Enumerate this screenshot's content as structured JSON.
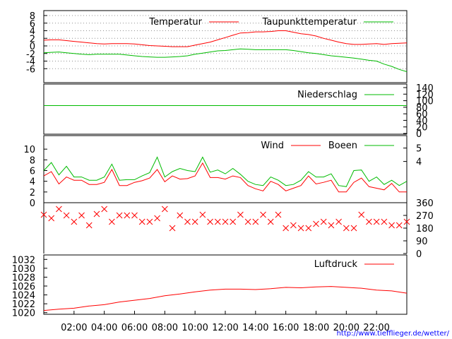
{
  "source_label": "http://www.tiefflieger.de/wetter/",
  "colors": {
    "red": "#ff0000",
    "green": "#00bb00",
    "grid": "#909090",
    "axis": "#000000",
    "link": "#0000ff"
  },
  "chart_data": [
    {
      "id": "temperature",
      "type": "line",
      "x_ticks": [
        "02:00",
        "04:00",
        "06:00",
        "08:00",
        "10:00",
        "12:00",
        "14:00",
        "16:00",
        "18:00",
        "20:00",
        "22:00"
      ],
      "x_range": [
        0,
        24
      ],
      "ylim": [
        -8,
        8
      ],
      "y_ticks": [
        "8",
        "6",
        "4",
        "2",
        "0",
        "-2",
        "-4",
        "-6"
      ],
      "grid": true,
      "legend": "top-right",
      "series": [
        {
          "name": "Temperatur",
          "color": "#ff0000",
          "x": [
            0,
            0.5,
            1,
            1.5,
            2,
            2.5,
            3,
            3.5,
            4,
            4.5,
            5,
            5.5,
            6,
            6.5,
            7,
            7.5,
            8,
            8.5,
            9,
            9.5,
            10,
            10.5,
            11,
            11.5,
            12,
            12.5,
            13,
            13.5,
            14,
            14.5,
            15,
            15.5,
            16,
            16.5,
            17,
            17.5,
            18,
            18.5,
            19,
            19.5,
            20,
            20.5,
            21,
            21.5,
            22,
            22.5,
            23,
            23.5,
            24
          ],
          "values": [
            1.5,
            1.6,
            1.6,
            1.4,
            1.2,
            1.0,
            0.8,
            0.6,
            0.5,
            0.6,
            0.6,
            0.6,
            0.5,
            0.3,
            0.1,
            0.0,
            -0.1,
            -0.2,
            -0.2,
            -0.2,
            0.2,
            0.6,
            1.0,
            1.6,
            2.2,
            2.8,
            3.4,
            3.5,
            3.7,
            3.7,
            3.8,
            4.0,
            4.0,
            3.6,
            3.2,
            3.0,
            2.6,
            2.0,
            1.5,
            1.0,
            0.6,
            0.4,
            0.4,
            0.5,
            0.6,
            0.4,
            0.6,
            0.7,
            0.8
          ]
        },
        {
          "name": "Taupunkttemperatur",
          "color": "#00bb00",
          "x": [
            0,
            0.5,
            1,
            1.5,
            2,
            2.5,
            3,
            3.5,
            4,
            4.5,
            5,
            5.5,
            6,
            6.5,
            7,
            7.5,
            8,
            8.5,
            9,
            9.5,
            10,
            10.5,
            11,
            11.5,
            12,
            12.5,
            13,
            13.5,
            14,
            14.5,
            15,
            15.5,
            16,
            16.5,
            17,
            17.5,
            18,
            18.5,
            19,
            19.5,
            20,
            20.5,
            21,
            21.5,
            22,
            22.5,
            23,
            23.5,
            24
          ],
          "values": [
            -1.8,
            -1.7,
            -1.6,
            -1.8,
            -2.0,
            -2.2,
            -2.3,
            -2.2,
            -2.2,
            -2.2,
            -2.2,
            -2.4,
            -2.6,
            -2.8,
            -2.9,
            -3.0,
            -3.0,
            -2.9,
            -2.8,
            -2.6,
            -2.2,
            -1.9,
            -1.6,
            -1.3,
            -1.2,
            -1.0,
            -0.8,
            -0.9,
            -1.0,
            -1.0,
            -1.0,
            -1.0,
            -1.0,
            -1.2,
            -1.5,
            -1.8,
            -2.0,
            -2.3,
            -2.6,
            -2.8,
            -3.0,
            -3.2,
            -3.5,
            -3.8,
            -4.0,
            -4.8,
            -5.4,
            -6.2,
            -6.8
          ]
        }
      ]
    },
    {
      "id": "precipitation",
      "type": "line",
      "x_range": [
        0,
        24
      ],
      "ylim": [
        0,
        140
      ],
      "y_ticks": [
        "140",
        "120",
        "100",
        "80",
        "60",
        "40",
        "20",
        "0"
      ],
      "legend": "top-right",
      "series": [
        {
          "name": "Niederschlag",
          "color": "#00bb00",
          "x": [
            0,
            24
          ],
          "values": [
            85,
            85
          ]
        }
      ]
    },
    {
      "id": "wind",
      "type": "line",
      "x_range": [
        0,
        24
      ],
      "ylim": [
        0,
        12
      ],
      "y_ticks": [
        "10",
        "8",
        "6",
        "4",
        "2",
        "0"
      ],
      "y2_ticks": [
        "5",
        "4"
      ],
      "legend": "top-right",
      "series": [
        {
          "name": "Wind",
          "color": "#ff0000",
          "x": [
            0,
            0.5,
            1,
            1.5,
            2,
            2.5,
            3,
            3.5,
            4,
            4.5,
            5,
            5.5,
            6,
            6.5,
            7,
            7.5,
            8,
            8.5,
            9,
            9.5,
            10,
            10.5,
            11,
            11.5,
            12,
            12.5,
            13,
            13.5,
            14,
            14.5,
            15,
            15.5,
            16,
            16.5,
            17,
            17.5,
            18,
            18.5,
            19,
            19.5,
            20,
            20.5,
            21,
            21.5,
            22,
            22.5,
            23,
            23.5,
            24
          ],
          "values": [
            5.0,
            5.8,
            3.5,
            4.8,
            4.2,
            4.2,
            3.4,
            3.4,
            3.8,
            6.2,
            3.2,
            3.2,
            3.8,
            4.1,
            4.6,
            6.2,
            3.9,
            5.0,
            4.4,
            4.5,
            5.0,
            7.4,
            4.7,
            4.7,
            4.4,
            5.0,
            4.7,
            3.2,
            2.6,
            2.2,
            4.0,
            3.4,
            2.2,
            2.7,
            3.2,
            5.0,
            3.5,
            3.8,
            4.2,
            2.0,
            2.0,
            3.8,
            4.6,
            3.0,
            2.7,
            2.4,
            3.6,
            2.0,
            2.0
          ]
        },
        {
          "name": "Boeen",
          "color": "#00bb00",
          "x": [
            0,
            0.5,
            1,
            1.5,
            2,
            2.5,
            3,
            3.5,
            4,
            4.5,
            5,
            5.5,
            6,
            6.5,
            7,
            7.5,
            8,
            8.5,
            9,
            9.5,
            10,
            10.5,
            11,
            11.5,
            12,
            12.5,
            13,
            13.5,
            14,
            14.5,
            15,
            15.5,
            16,
            16.5,
            17,
            17.5,
            18,
            18.5,
            19,
            19.5,
            20,
            20.5,
            21,
            21.5,
            22,
            22.5,
            23,
            23.5,
            24
          ],
          "values": [
            6.0,
            7.5,
            5.2,
            6.8,
            4.8,
            4.8,
            4.2,
            4.2,
            4.8,
            7.2,
            4.2,
            4.3,
            4.3,
            5.0,
            5.6,
            8.5,
            4.8,
            5.8,
            6.4,
            6.0,
            5.8,
            8.5,
            5.7,
            6.1,
            5.4,
            6.4,
            5.3,
            4.0,
            3.4,
            3.2,
            4.8,
            4.2,
            3.2,
            3.4,
            4.2,
            5.8,
            4.8,
            4.8,
            5.4,
            3.2,
            3.0,
            6.0,
            6.1,
            4.0,
            4.8,
            3.4,
            4.2,
            3.2,
            4.0
          ]
        }
      ]
    },
    {
      "id": "wind_direction",
      "type": "scatter",
      "x_range": [
        0,
        24
      ],
      "ylim": [
        0,
        360
      ],
      "y2_ticks": [
        "360",
        "270",
        "180",
        "90",
        "0"
      ],
      "series": [
        {
          "name": "",
          "color": "#ff0000",
          "marker": "x",
          "x": [
            0,
            0.5,
            1,
            1.5,
            2,
            2.5,
            3,
            3.5,
            4,
            4.5,
            5,
            5.5,
            6,
            6.5,
            7,
            7.5,
            8,
            8.5,
            9,
            9.5,
            10,
            10.5,
            11,
            11.5,
            12,
            12.5,
            13,
            13.5,
            14,
            14.5,
            15,
            15.5,
            16,
            16.5,
            17,
            17.5,
            18,
            18.5,
            19,
            19.5,
            20,
            20.5,
            21,
            21.5,
            22,
            22.5,
            23,
            23.5,
            24
          ],
          "values": [
            275,
            250,
            315,
            270,
            225,
            270,
            200,
            280,
            315,
            225,
            270,
            270,
            270,
            225,
            225,
            250,
            315,
            180,
            270,
            225,
            225,
            275,
            225,
            225,
            225,
            225,
            275,
            225,
            225,
            275,
            225,
            275,
            180,
            200,
            180,
            180,
            210,
            225,
            200,
            225,
            180,
            180,
            275,
            225,
            225,
            225,
            200,
            200,
            225
          ]
        }
      ]
    },
    {
      "id": "pressure",
      "type": "line",
      "x_range": [
        0,
        24
      ],
      "ylim": [
        1019,
        1033
      ],
      "y_ticks": [
        "1032",
        "1030",
        "1028",
        "1026",
        "1024",
        "1022",
        "1020"
      ],
      "legend": "top-right",
      "series": [
        {
          "name": "Luftdruck",
          "color": "#ff0000",
          "x": [
            0,
            1,
            2,
            3,
            4,
            5,
            6,
            7,
            8,
            9,
            10,
            11,
            12,
            13,
            14,
            15,
            16,
            17,
            18,
            19,
            20,
            21,
            22,
            23,
            24
          ],
          "values": [
            1020.5,
            1020.8,
            1021.0,
            1021.5,
            1021.8,
            1022.4,
            1022.8,
            1023.2,
            1023.8,
            1024.2,
            1024.7,
            1025.1,
            1025.3,
            1025.3,
            1025.2,
            1025.4,
            1025.7,
            1025.6,
            1025.8,
            1025.9,
            1025.7,
            1025.5,
            1025.1,
            1024.9,
            1024.4
          ]
        }
      ]
    }
  ]
}
